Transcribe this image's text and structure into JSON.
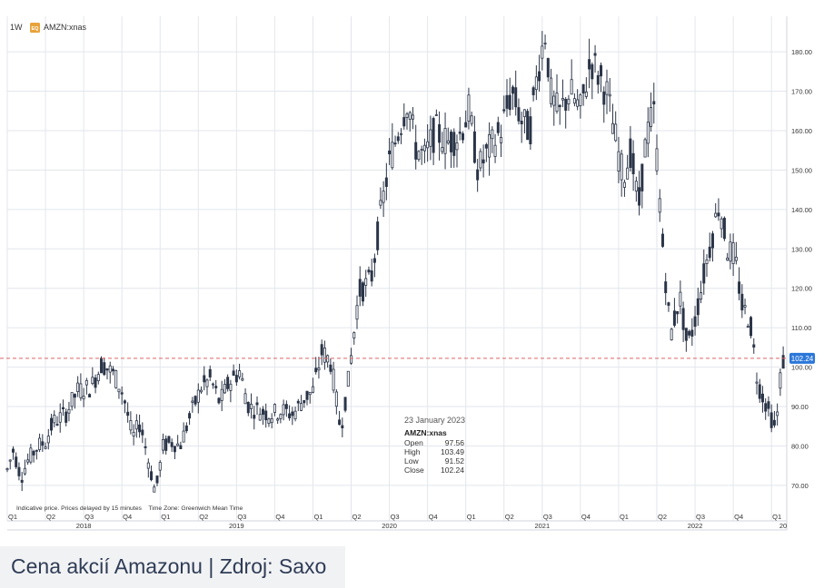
{
  "header": {
    "interval": "1W",
    "badge": "EQ",
    "symbol": "AMZN:xnas"
  },
  "notice": "Indicative price. Prices delayed by 15 minutes    Time Zone: Greenwich Mean Time",
  "tooltip": {
    "date": "23 January 2023",
    "symbol": "AMZN:xnas",
    "rows": [
      {
        "label": "Open",
        "value": "97.56"
      },
      {
        "label": "High",
        "value": "103.49"
      },
      {
        "label": "Low",
        "value": "91.52"
      },
      {
        "label": "Close",
        "value": "102.24"
      }
    ]
  },
  "caption": "Cena akcií Amazonu | Zdroj: Saxo",
  "colors": {
    "candle": "#2b3548",
    "grid": "#e3e6ec",
    "price_line": "#e06666",
    "price_tag": "#2b77d9",
    "badge": "#e8a33d",
    "axis_text": "#333333"
  },
  "chart_data": {
    "type": "candlestick",
    "symbol": "AMZN:xnas",
    "interval": "1W",
    "ylim": [
      64,
      189
    ],
    "y_ticks": [
      70,
      80,
      90,
      100,
      110,
      120,
      130,
      140,
      150,
      160,
      170,
      180
    ],
    "y_tick_labels": [
      "70.00",
      "80.00",
      "90.00",
      "100.00",
      "110.00",
      "120.00",
      "130.00",
      "140.00",
      "150.00",
      "160.00",
      "170.00",
      "180.00"
    ],
    "current_price": 102.24,
    "current_price_label": "102.24",
    "xlim": [
      2018.0,
      2023.08
    ],
    "quarter_ticks": [
      {
        "t": 2018.0,
        "label": "Q1"
      },
      {
        "t": 2018.25,
        "label": "Q2"
      },
      {
        "t": 2018.5,
        "label": "Q3"
      },
      {
        "t": 2018.75,
        "label": "Q4"
      },
      {
        "t": 2019.0,
        "label": "Q1"
      },
      {
        "t": 2019.25,
        "label": "Q2"
      },
      {
        "t": 2019.5,
        "label": "Q3"
      },
      {
        "t": 2019.75,
        "label": "Q4"
      },
      {
        "t": 2020.0,
        "label": "Q1"
      },
      {
        "t": 2020.25,
        "label": "Q2"
      },
      {
        "t": 2020.5,
        "label": "Q3"
      },
      {
        "t": 2020.75,
        "label": "Q4"
      },
      {
        "t": 2021.0,
        "label": "Q1"
      },
      {
        "t": 2021.25,
        "label": "Q2"
      },
      {
        "t": 2021.5,
        "label": "Q3"
      },
      {
        "t": 2021.75,
        "label": "Q4"
      },
      {
        "t": 2022.0,
        "label": "Q1"
      },
      {
        "t": 2022.25,
        "label": "Q2"
      },
      {
        "t": 2022.5,
        "label": "Q3"
      },
      {
        "t": 2022.75,
        "label": "Q4"
      },
      {
        "t": 2023.0,
        "label": "Q1"
      }
    ],
    "year_labels": [
      {
        "t": 2018.5,
        "label": "2018"
      },
      {
        "t": 2019.5,
        "label": "2019"
      },
      {
        "t": 2020.5,
        "label": "2020"
      },
      {
        "t": 2021.5,
        "label": "2021"
      },
      {
        "t": 2022.5,
        "label": "2022"
      },
      {
        "t": 2023.08,
        "label": "20"
      }
    ],
    "price_path": [
      [
        2018.0,
        74
      ],
      [
        2018.04,
        79
      ],
      [
        2018.09,
        72
      ],
      [
        2018.13,
        76
      ],
      [
        2018.2,
        80
      ],
      [
        2018.25,
        81
      ],
      [
        2018.3,
        86
      ],
      [
        2018.38,
        88
      ],
      [
        2018.46,
        94
      ],
      [
        2018.55,
        95
      ],
      [
        2018.62,
        101
      ],
      [
        2018.7,
        98
      ],
      [
        2018.76,
        93
      ],
      [
        2018.82,
        82
      ],
      [
        2018.87,
        86
      ],
      [
        2018.93,
        75
      ],
      [
        2018.97,
        68
      ],
      [
        2019.02,
        80
      ],
      [
        2019.08,
        81
      ],
      [
        2019.13,
        80
      ],
      [
        2019.2,
        88
      ],
      [
        2019.27,
        95
      ],
      [
        2019.33,
        97
      ],
      [
        2019.39,
        91
      ],
      [
        2019.45,
        96
      ],
      [
        2019.52,
        99
      ],
      [
        2019.58,
        90
      ],
      [
        2019.65,
        89
      ],
      [
        2019.72,
        88
      ],
      [
        2019.8,
        89
      ],
      [
        2019.87,
        88
      ],
      [
        2019.94,
        92
      ],
      [
        2020.0,
        94
      ],
      [
        2020.06,
        104
      ],
      [
        2020.12,
        101
      ],
      [
        2020.18,
        84
      ],
      [
        2020.23,
        96
      ],
      [
        2020.3,
        119
      ],
      [
        2020.38,
        122
      ],
      [
        2020.44,
        138
      ],
      [
        2020.5,
        152
      ],
      [
        2020.56,
        160
      ],
      [
        2020.62,
        168
      ],
      [
        2020.67,
        156
      ],
      [
        2020.73,
        153
      ],
      [
        2020.8,
        160
      ],
      [
        2020.88,
        157
      ],
      [
        2020.96,
        159
      ],
      [
        2021.02,
        165
      ],
      [
        2021.08,
        150
      ],
      [
        2021.15,
        155
      ],
      [
        2021.23,
        160
      ],
      [
        2021.3,
        170
      ],
      [
        2021.37,
        162
      ],
      [
        2021.42,
        160
      ],
      [
        2021.47,
        175
      ],
      [
        2021.52,
        185
      ],
      [
        2021.56,
        168
      ],
      [
        2021.61,
        164
      ],
      [
        2021.68,
        170
      ],
      [
        2021.75,
        165
      ],
      [
        2021.82,
        178
      ],
      [
        2021.87,
        174
      ],
      [
        2021.92,
        170
      ],
      [
        2021.97,
        160
      ],
      [
        2022.03,
        148
      ],
      [
        2022.08,
        155
      ],
      [
        2022.13,
        140
      ],
      [
        2022.18,
        158
      ],
      [
        2022.23,
        165
      ],
      [
        2022.29,
        130
      ],
      [
        2022.34,
        108
      ],
      [
        2022.4,
        118
      ],
      [
        2022.45,
        105
      ],
      [
        2022.5,
        112
      ],
      [
        2022.55,
        122
      ],
      [
        2022.61,
        133
      ],
      [
        2022.66,
        142
      ],
      [
        2022.71,
        130
      ],
      [
        2022.76,
        128
      ],
      [
        2022.81,
        115
      ],
      [
        2022.86,
        112
      ],
      [
        2022.91,
        96
      ],
      [
        2022.95,
        92
      ],
      [
        2022.99,
        88
      ],
      [
        2023.03,
        84
      ],
      [
        2023.06,
        98
      ],
      [
        2023.08,
        102.24
      ]
    ]
  }
}
